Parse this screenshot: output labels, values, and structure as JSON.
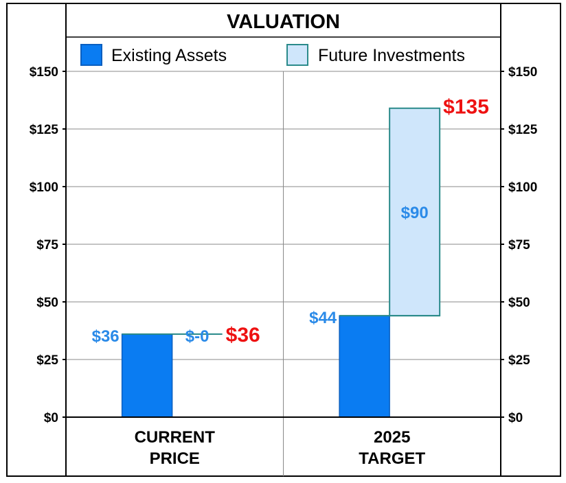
{
  "chart_data": {
    "type": "bar",
    "stacked": true,
    "title": "VALUATION",
    "categories": [
      "CURRENT PRICE",
      "2025 TARGET"
    ],
    "category_lines": [
      [
        "CURRENT",
        "PRICE"
      ],
      [
        "2025",
        "TARGET"
      ]
    ],
    "series": [
      {
        "name": "Existing Assets",
        "values": [
          36,
          44
        ],
        "labels": [
          "$36",
          "$44"
        ],
        "color": "#0a7cf2",
        "label_color": "#2a8ae8"
      },
      {
        "name": "Future Investments",
        "values": [
          0,
          90
        ],
        "labels": [
          "$-0",
          "$90"
        ],
        "color": "#cfe6fb",
        "label_color": "#2a8ae8"
      }
    ],
    "totals": {
      "values": [
        36,
        135
      ],
      "labels": [
        "$36",
        "$135"
      ],
      "color": "#ee1111"
    },
    "yticks": [
      0,
      25,
      50,
      75,
      100,
      125,
      150
    ],
    "ytick_labels": [
      "$0",
      "$25",
      "$50",
      "$75",
      "$100",
      "$125",
      "$150"
    ],
    "ylim": [
      0,
      150
    ],
    "grid": true,
    "legend_position": "top",
    "axes": "left-and-right"
  }
}
